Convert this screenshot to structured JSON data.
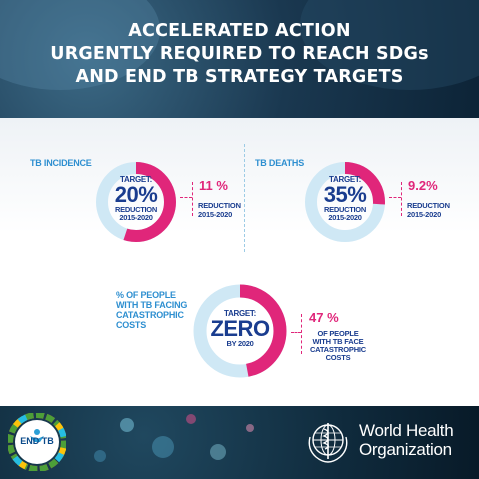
{
  "title": {
    "line1": "ACCELERATED ACTION",
    "line2": "URGENTLY REQUIRED TO REACH SDGs",
    "line3": "AND END TB STRATEGY TARGETS"
  },
  "incidence": {
    "label": "TB INCIDENCE",
    "target_label": "TARGET:",
    "target_value": "20%",
    "target_sub1": "REDUCTION",
    "target_sub2": "2015-2020",
    "actual_value": "11 %",
    "actual_sub1": "REDUCTION",
    "actual_sub2": "2015-2020",
    "progress_fraction": 0.55
  },
  "deaths": {
    "label": "TB DEATHS",
    "target_label": "TARGET:",
    "target_value": "35%",
    "target_sub1": "REDUCTION",
    "target_sub2": "2015-2020",
    "actual_value": "9.2%",
    "actual_sub1": "REDUCTION",
    "actual_sub2": "2015-2020",
    "progress_fraction": 0.26
  },
  "catastrophic": {
    "label_line1": "% OF PEOPLE",
    "label_line2": "WITH TB FACING",
    "label_line3": "CATASTROPHIC",
    "label_line4": "COSTS",
    "target_label": "TARGET:",
    "target_value": "ZERO",
    "target_sub": "BY 2020",
    "actual_value": "47 %",
    "actual_sub1": "OF PEOPLE",
    "actual_sub2": "WITH TB FACE",
    "actual_sub3": "CATASTROPHIC",
    "actual_sub4": "COSTS",
    "progress_fraction": 0.47
  },
  "logos": {
    "endtb": "END TB",
    "who_line1": "World Health",
    "who_line2": "Organization",
    "endtb_icon": "end-tb-logo",
    "who_icon": "who-emblem"
  },
  "colors": {
    "accent_pink": "#e0267a",
    "track_blue": "#cfe8f5",
    "text_navy": "#1a3d8f",
    "label_blue": "#2e8fd0"
  }
}
